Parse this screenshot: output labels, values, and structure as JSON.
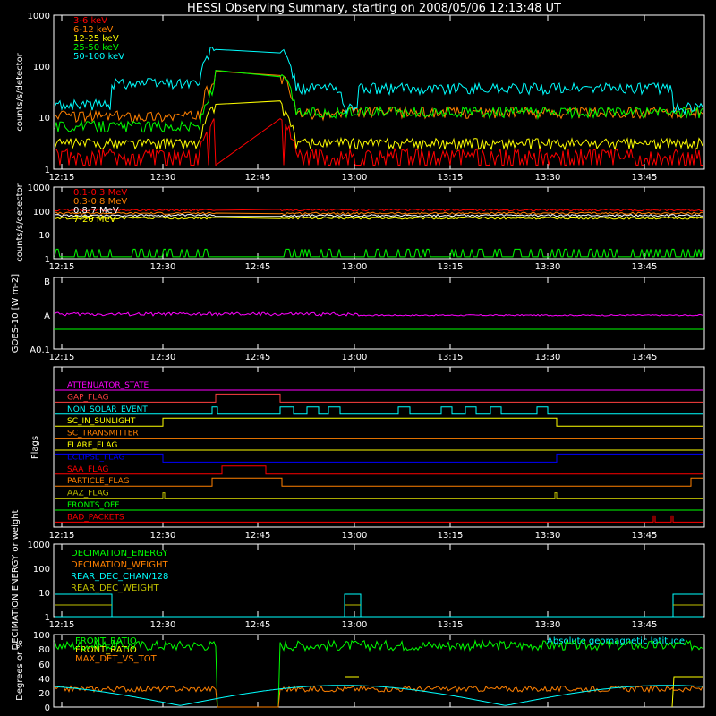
{
  "title": "HESSI Observing Summary, starting on 2008/05/06 12:13:48 UT",
  "time_ticks": [
    "12:15",
    "12:30",
    "12:45",
    "13:00",
    "13:15",
    "13:30",
    "13:45"
  ],
  "chart_data": [
    {
      "type": "line",
      "ylabel": "counts/s/detector",
      "yscale": "log",
      "ylim": [
        1,
        1000
      ],
      "yticks": [
        "1",
        "10",
        "100",
        "1000"
      ],
      "series": [
        {
          "name": "3-6 keV",
          "color": "#ff0000",
          "pre": 2.2,
          "post": 1.8,
          "level": 2.0
        },
        {
          "name": "6-12 keV",
          "color": "#ff8000",
          "pre": 10,
          "post": 9,
          "level": 12
        },
        {
          "name": "12-25 keV",
          "color": "#ffff00",
          "pre": 3.5,
          "post": 3,
          "level": 3.2
        },
        {
          "name": "25-50 keV",
          "color": "#00ff00",
          "pre": 7,
          "post": 12,
          "level": 13
        },
        {
          "name": "50-100 keV",
          "color": "#00ffff",
          "pre": 45,
          "post": 40,
          "level": 38
        }
      ]
    },
    {
      "type": "line",
      "ylabel": "counts/s/detector",
      "yscale": "log",
      "ylim": [
        1,
        1000
      ],
      "yticks": [
        "1",
        "10",
        "100",
        "1000"
      ],
      "series": [
        {
          "name": "0.1-0.3 MeV",
          "color": "#ff0000",
          "level": 110
        },
        {
          "name": "0.3-0.8 MeV",
          "color": "#ff8000",
          "level": 80
        },
        {
          "name": "0.8-7 MeV",
          "color": "#ffffff",
          "level": 65
        },
        {
          "name": "7-20 MeV",
          "color": "#ffff00",
          "level": 50
        },
        {
          "name": "",
          "color": "#00ff00",
          "level": 1.5
        }
      ]
    },
    {
      "type": "line",
      "ylabel": "GOES-10 [W m-2]",
      "yticks": [
        "A0.1",
        "A",
        "B"
      ],
      "series": [
        {
          "name": "",
          "color": "#ff00ff",
          "level": "A"
        },
        {
          "name": "",
          "color": "#00ff00",
          "level": "A0.5"
        }
      ]
    },
    {
      "type": "line",
      "ylabel": "Flags",
      "flags": [
        {
          "name": "ATTENUATOR_STATE",
          "color": "#ff00ff"
        },
        {
          "name": "GAP_FLAG",
          "color": "#ff4040"
        },
        {
          "name": "NON_SOLAR_EVENT",
          "color": "#00ffff"
        },
        {
          "name": "SC_IN_SUNLIGHT",
          "color": "#ffff00"
        },
        {
          "name": "SC_TRANSMITTER",
          "color": "#ff8000"
        },
        {
          "name": "FLARE_FLAG",
          "color": "#ffff00"
        },
        {
          "name": "ECLIPSE_FLAG",
          "color": "#0000ff"
        },
        {
          "name": "SAA_FLAG",
          "color": "#ff0000"
        },
        {
          "name": "PARTICLE_FLAG",
          "color": "#ff8000"
        },
        {
          "name": "AAZ_FLAG",
          "color": "#c0c000"
        },
        {
          "name": "FRONTS_OFF",
          "color": "#00ff00"
        },
        {
          "name": "BAD_PACKETS",
          "color": "#ff0000"
        }
      ]
    },
    {
      "type": "line",
      "ylabel": "DECIMATION ENERGY or weight",
      "ylim": [
        1,
        1000
      ],
      "yticks": [
        "1",
        "10",
        "100",
        "1000"
      ],
      "series": [
        {
          "name": "DECIMATION_ENERGY",
          "color": "#00ff00"
        },
        {
          "name": "DECIMATION_WEIGHT",
          "color": "#ff8000"
        },
        {
          "name": "REAR_DEC_CHAN/128",
          "color": "#00ffff"
        },
        {
          "name": "REAR_DEC_WEIGHT",
          "color": "#c0c000"
        }
      ]
    },
    {
      "type": "line",
      "ylabel": "Degrees or %",
      "yticks": [
        "0",
        "20",
        "40",
        "60",
        "80",
        "100"
      ],
      "annotation": "Absolute geomagnetic latitude",
      "series": [
        {
          "name": "FRONT_RATIO",
          "color": "#00ff00",
          "level": 85
        },
        {
          "name": "FRONT_RATIO",
          "color": "#ffff00",
          "level": 40
        },
        {
          "name": "MAX_DET_VS_TOT",
          "color": "#ff8000",
          "level": 25
        },
        {
          "name": "",
          "color": "#00ffff",
          "level": 30
        }
      ]
    }
  ]
}
